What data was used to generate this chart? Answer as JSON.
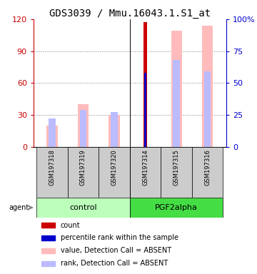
{
  "title": "GDS3039 / Mmu.16043.1.S1_at",
  "samples": [
    "GSM197318",
    "GSM197319",
    "GSM197320",
    "GSM197314",
    "GSM197315",
    "GSM197316"
  ],
  "group_colors": [
    "#bbffbb",
    "#44dd44"
  ],
  "ylim_left": [
    0,
    120
  ],
  "ylim_right": [
    0,
    100
  ],
  "yticks_left": [
    0,
    30,
    60,
    90,
    120
  ],
  "yticks_right": [
    0,
    25,
    50,
    75,
    100
  ],
  "ytick_labels_right": [
    "0",
    "25",
    "50",
    "75",
    "100%"
  ],
  "value_absent": [
    20,
    40,
    30,
    0,
    109,
    114
  ],
  "rank_absent": [
    22,
    29,
    27,
    0,
    68,
    59
  ],
  "count_val": [
    0,
    0,
    0,
    117,
    0,
    0
  ],
  "pct_rank": [
    0,
    0,
    0,
    58,
    0,
    0
  ],
  "color_value_absent": "#ffbbbb",
  "color_rank_absent": "#bbbbff",
  "color_count": "#cc0000",
  "color_pct_rank": "#0000cc",
  "legend_items": [
    {
      "label": "count",
      "color": "#cc0000"
    },
    {
      "label": "percentile rank within the sample",
      "color": "#0000cc"
    },
    {
      "label": "value, Detection Call = ABSENT",
      "color": "#ffbbbb"
    },
    {
      "label": "rank, Detection Call = ABSENT",
      "color": "#bbbbff"
    }
  ],
  "agent_label": "agent",
  "left_axis_color": "#cc0000",
  "right_axis_color": "#0000cc",
  "title_fontsize": 10,
  "tick_fontsize": 8,
  "sample_fontsize": 6,
  "group_fontsize": 8,
  "legend_fontsize": 7
}
